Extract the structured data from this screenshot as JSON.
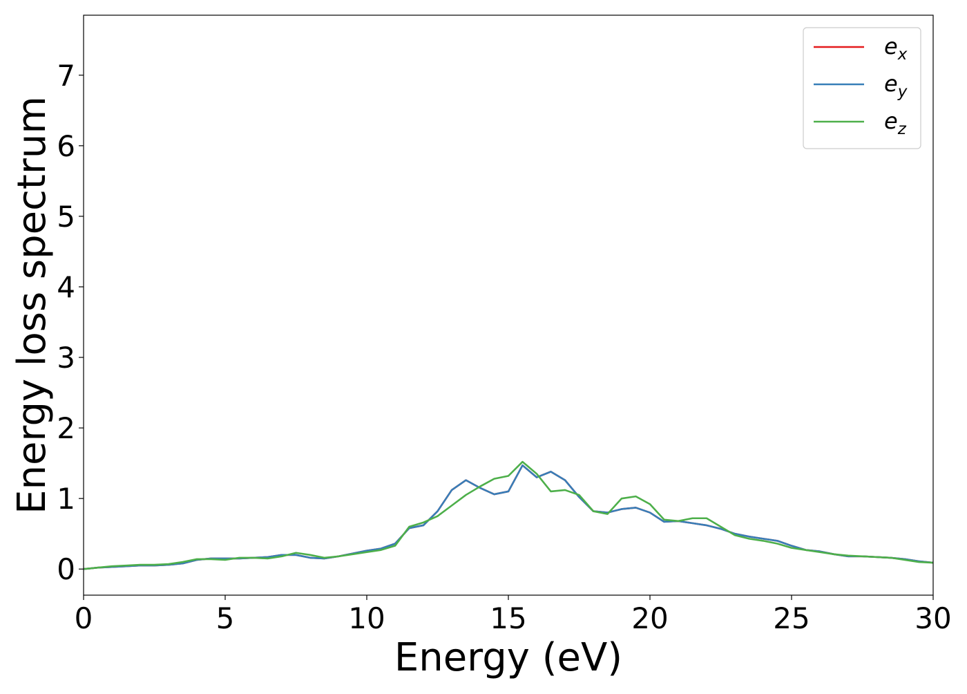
{
  "chart_data": {
    "type": "line",
    "xlabel": "Energy (eV)",
    "ylabel": "Energy loss spectrum",
    "xlim": [
      0,
      30
    ],
    "ylim": [
      -0.37,
      7.85
    ],
    "xticks": [
      0,
      5,
      10,
      15,
      20,
      25,
      30
    ],
    "yticks": [
      0,
      1,
      2,
      3,
      4,
      5,
      6,
      7
    ],
    "grid": false,
    "legend_position": "top-right",
    "series": [
      {
        "name": "e_x",
        "base": "e",
        "sub": "x",
        "color": "#e41a1c",
        "x": [
          0,
          0.5,
          1,
          1.5,
          2,
          2.5,
          3,
          3.5,
          4,
          4.5,
          5,
          5.5,
          6,
          6.5,
          7,
          7.5,
          8,
          8.5,
          9,
          9.5,
          10,
          10.5,
          11,
          11.5,
          12,
          12.5,
          13,
          13.5,
          14,
          14.5,
          15,
          15.5,
          16,
          16.5,
          17,
          17.5,
          18,
          18.5,
          19,
          19.5,
          20,
          20.5,
          21,
          21.5,
          22,
          22.5,
          23,
          23.5,
          24,
          24.5,
          25,
          25.5,
          26,
          26.5,
          27,
          27.5,
          28,
          28.5,
          29,
          29.5,
          30
        ],
        "y": [
          0,
          0.02,
          0.03,
          0.04,
          0.05,
          0.05,
          0.06,
          0.08,
          0.13,
          0.15,
          0.15,
          0.15,
          0.16,
          0.17,
          0.2,
          0.2,
          0.16,
          0.15,
          0.18,
          0.22,
          0.26,
          0.29,
          0.36,
          0.58,
          0.62,
          0.82,
          1.12,
          1.26,
          1.15,
          1.06,
          1.1,
          1.47,
          1.3,
          1.38,
          1.26,
          1.02,
          0.82,
          0.8,
          0.85,
          0.87,
          0.8,
          0.67,
          0.68,
          0.65,
          0.62,
          0.57,
          0.5,
          0.46,
          0.43,
          0.4,
          0.33,
          0.27,
          0.25,
          0.21,
          0.18,
          0.18,
          0.17,
          0.16,
          0.14,
          0.11,
          0.09
        ]
      },
      {
        "name": "e_y",
        "base": "e",
        "sub": "y",
        "color": "#377eb8",
        "x": [
          0,
          0.5,
          1,
          1.5,
          2,
          2.5,
          3,
          3.5,
          4,
          4.5,
          5,
          5.5,
          6,
          6.5,
          7,
          7.5,
          8,
          8.5,
          9,
          9.5,
          10,
          10.5,
          11,
          11.5,
          12,
          12.5,
          13,
          13.5,
          14,
          14.5,
          15,
          15.5,
          16,
          16.5,
          17,
          17.5,
          18,
          18.5,
          19,
          19.5,
          20,
          20.5,
          21,
          21.5,
          22,
          22.5,
          23,
          23.5,
          24,
          24.5,
          25,
          25.5,
          26,
          26.5,
          27,
          27.5,
          28,
          28.5,
          29,
          29.5,
          30
        ],
        "y": [
          0,
          0.02,
          0.03,
          0.04,
          0.05,
          0.05,
          0.06,
          0.08,
          0.13,
          0.15,
          0.15,
          0.15,
          0.16,
          0.17,
          0.2,
          0.2,
          0.16,
          0.15,
          0.18,
          0.22,
          0.26,
          0.29,
          0.36,
          0.58,
          0.62,
          0.82,
          1.12,
          1.26,
          1.15,
          1.06,
          1.1,
          1.47,
          1.3,
          1.38,
          1.26,
          1.02,
          0.82,
          0.8,
          0.85,
          0.87,
          0.8,
          0.67,
          0.68,
          0.65,
          0.62,
          0.57,
          0.5,
          0.46,
          0.43,
          0.4,
          0.33,
          0.27,
          0.25,
          0.21,
          0.18,
          0.18,
          0.17,
          0.16,
          0.14,
          0.11,
          0.09
        ]
      },
      {
        "name": "e_z",
        "base": "e",
        "sub": "z",
        "color": "#4daf4a",
        "x": [
          0,
          0.5,
          1,
          1.5,
          2,
          2.5,
          3,
          3.5,
          4,
          4.5,
          5,
          5.5,
          6,
          6.5,
          7,
          7.5,
          8,
          8.5,
          9,
          9.5,
          10,
          10.5,
          11,
          11.5,
          12,
          12.5,
          13,
          13.5,
          14,
          14.5,
          15,
          15.5,
          16,
          16.5,
          17,
          17.5,
          18,
          18.5,
          19,
          19.5,
          20,
          20.5,
          21,
          21.5,
          22,
          22.5,
          23,
          23.5,
          24,
          24.5,
          25,
          25.5,
          26,
          26.5,
          27,
          27.5,
          28,
          28.5,
          29,
          29.5,
          30
        ],
        "y": [
          0,
          0.02,
          0.04,
          0.05,
          0.06,
          0.06,
          0.07,
          0.1,
          0.14,
          0.14,
          0.13,
          0.16,
          0.16,
          0.15,
          0.18,
          0.23,
          0.2,
          0.16,
          0.18,
          0.21,
          0.24,
          0.27,
          0.33,
          0.6,
          0.66,
          0.75,
          0.9,
          1.05,
          1.17,
          1.28,
          1.32,
          1.52,
          1.35,
          1.1,
          1.12,
          1.05,
          0.82,
          0.78,
          1.0,
          1.03,
          0.92,
          0.7,
          0.68,
          0.72,
          0.72,
          0.6,
          0.48,
          0.43,
          0.4,
          0.36,
          0.3,
          0.27,
          0.24,
          0.21,
          0.19,
          0.18,
          0.17,
          0.16,
          0.13,
          0.1,
          0.09
        ]
      }
    ]
  }
}
